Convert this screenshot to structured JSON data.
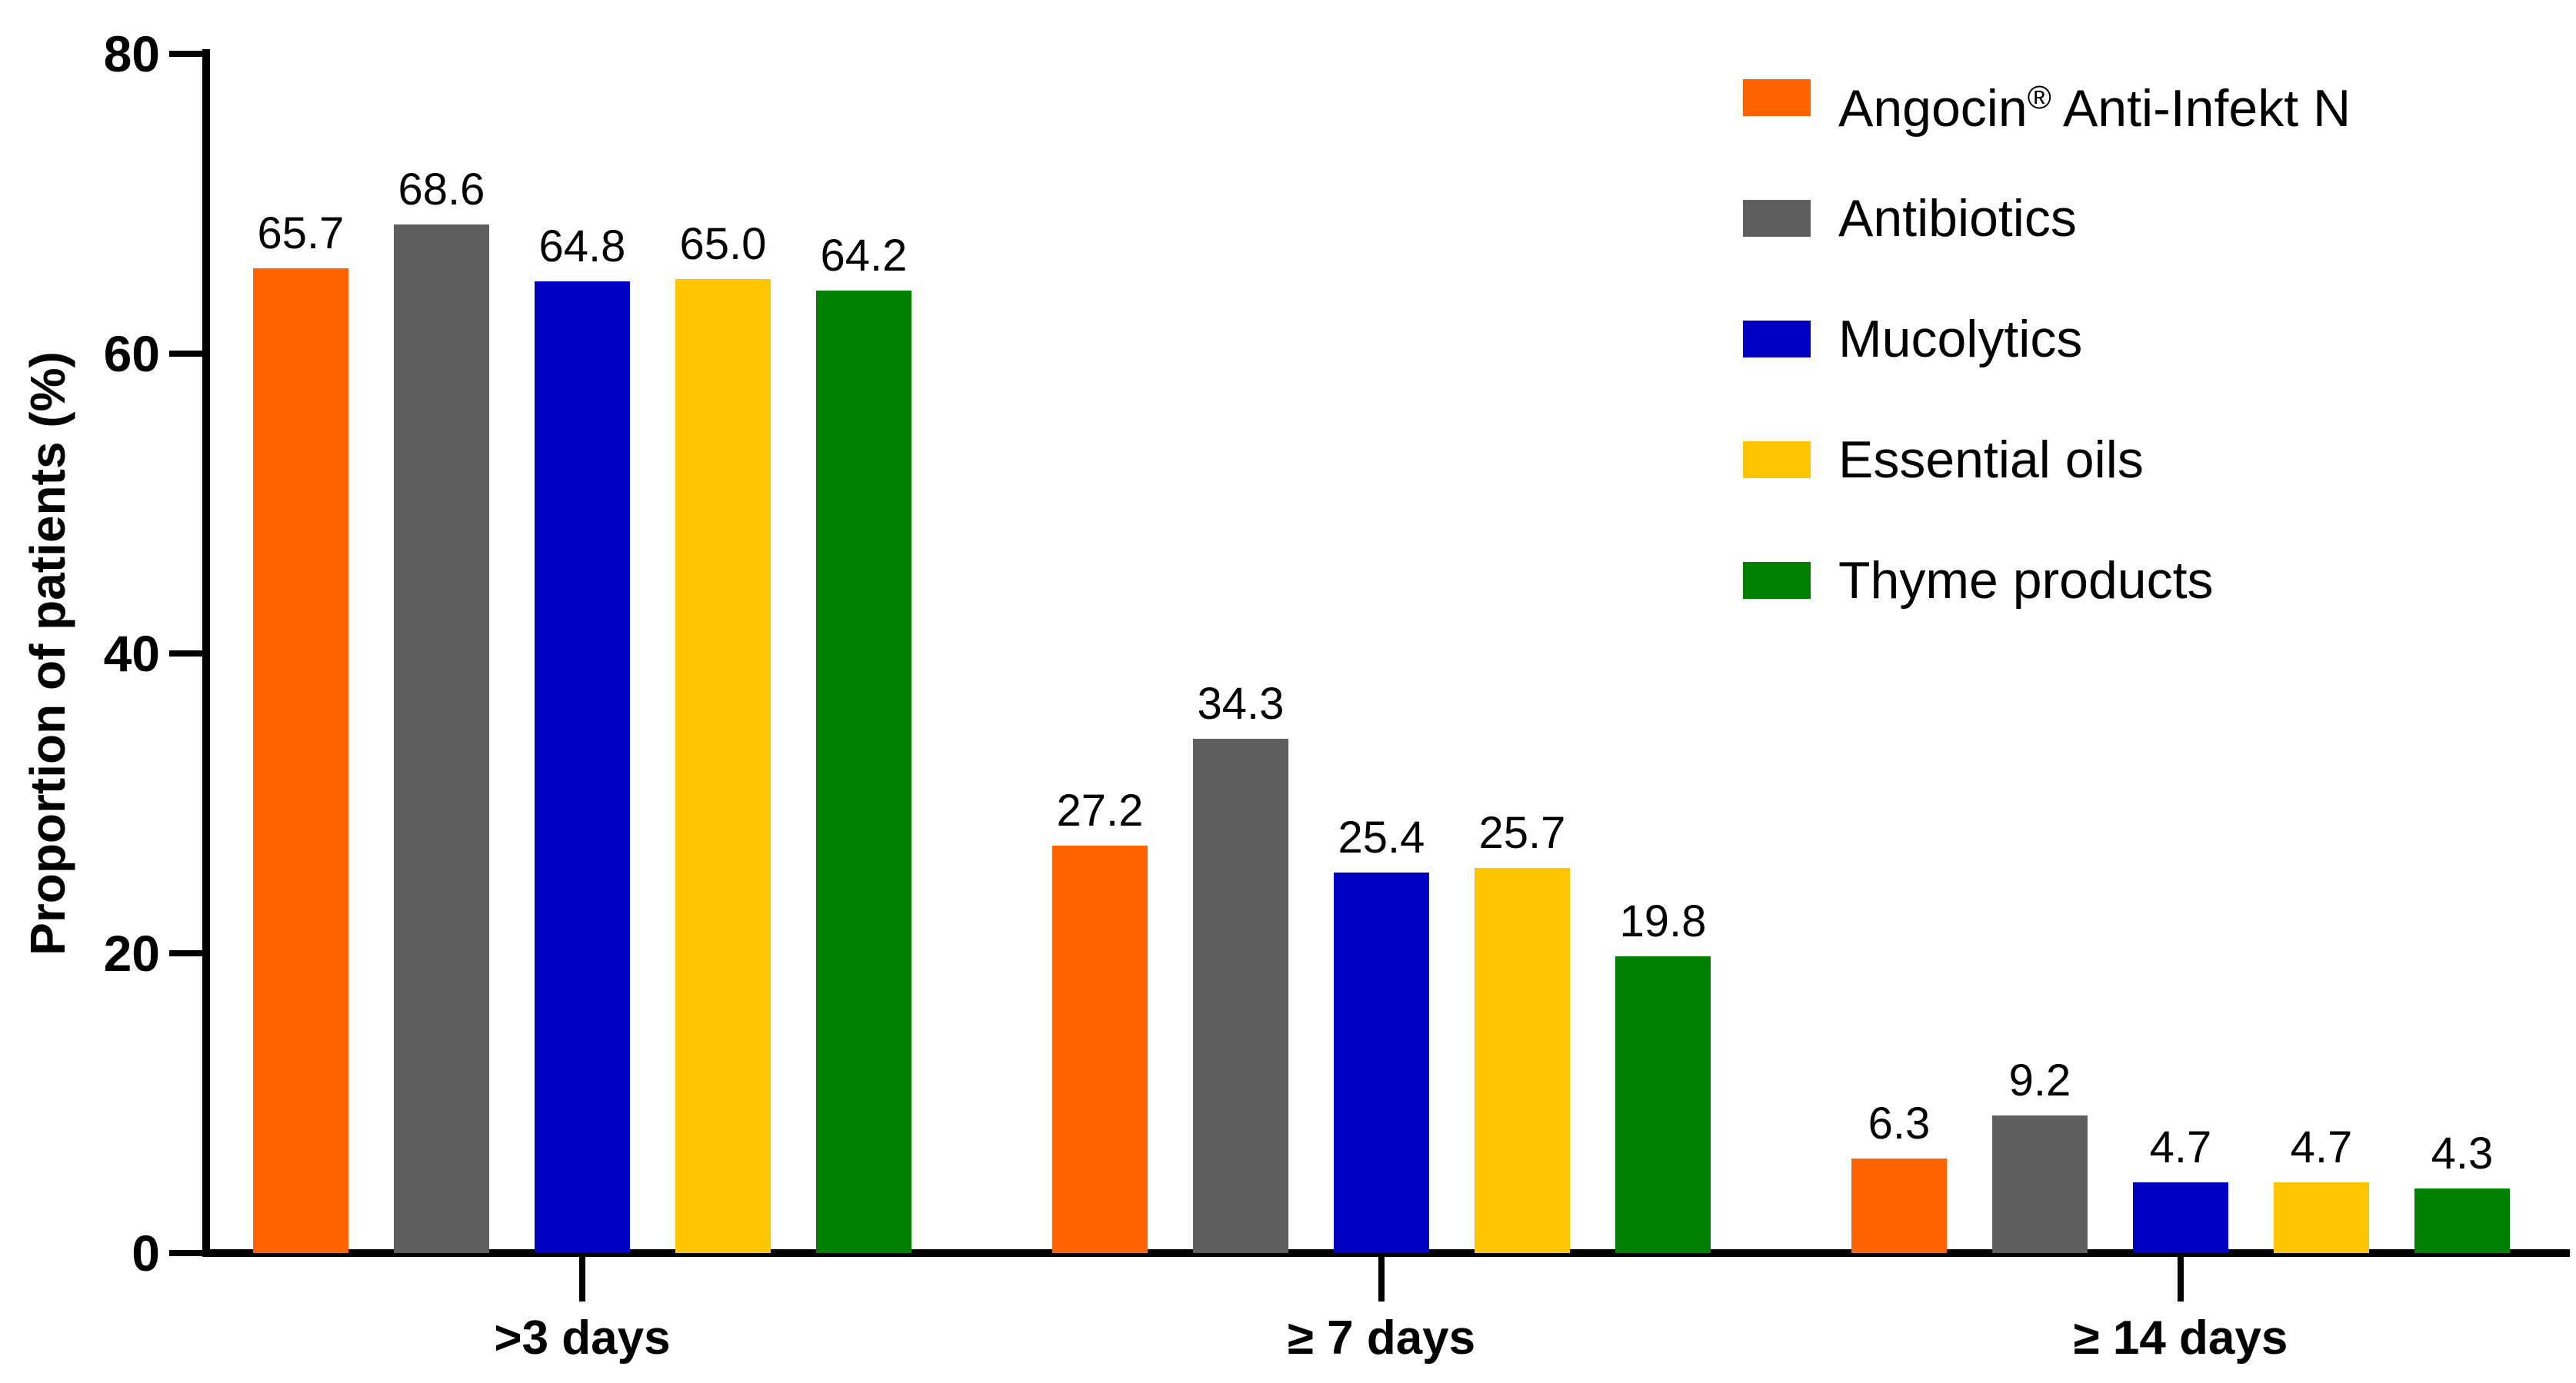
{
  "chart_data": {
    "type": "bar",
    "title": "",
    "xlabel": "",
    "ylabel": "Proportion of patients (%)",
    "ylim": [
      0,
      80
    ],
    "yticks": [
      0,
      20,
      40,
      60,
      80
    ],
    "grid": false,
    "legend_position": "top-right",
    "value_labels": true,
    "categories": [
      ">3 days",
      "≥ 7 days",
      "≥ 14 days"
    ],
    "series": [
      {
        "name": "Angocin® Anti-Infekt N",
        "color": "#FF6400",
        "values": [
          65.7,
          27.2,
          6.3
        ]
      },
      {
        "name": "Antibiotics",
        "color": "#5F5F5F",
        "values": [
          68.6,
          34.3,
          9.2
        ]
      },
      {
        "name": "Mucolytics",
        "color": "#0000C3",
        "values": [
          64.8,
          25.4,
          4.7
        ]
      },
      {
        "name": "Essential oils",
        "color": "#FDC500",
        "values": [
          65.0,
          25.7,
          4.7
        ]
      },
      {
        "name": "Thyme products",
        "color": "#008000",
        "values": [
          64.2,
          19.8,
          4.3
        ]
      }
    ]
  }
}
